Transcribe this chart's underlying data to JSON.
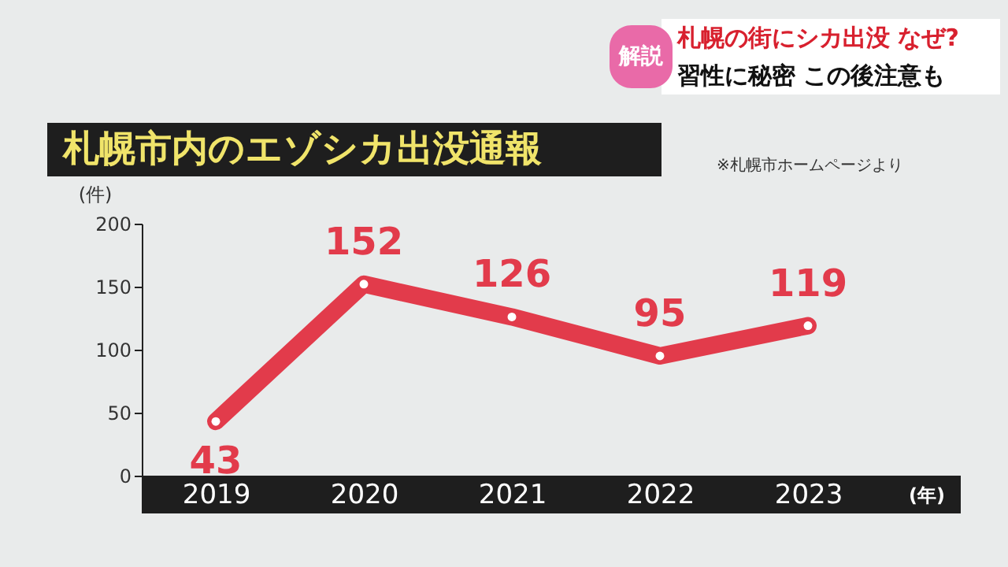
{
  "chart_data": {
    "type": "line",
    "title": "札幌市内のエゾシカ出没通報",
    "categories": [
      "2019",
      "2020",
      "2021",
      "2022",
      "2023"
    ],
    "series": [
      {
        "color": "#e23b4b",
        "values": [
          43,
          152,
          126,
          95,
          119
        ]
      }
    ],
    "ylim": [
      0,
      200
    ],
    "yticks": [
      0,
      50,
      100,
      150,
      200
    ],
    "ylabel": "(件)",
    "xlabel": "(年)",
    "marker": "circle",
    "data_labels": true,
    "grid": false,
    "annotations": [
      "※札幌市ホームページより",
      "解説",
      "札幌の街にシカ出没 なぜ?",
      "習性に秘密 この後注意も"
    ]
  }
}
